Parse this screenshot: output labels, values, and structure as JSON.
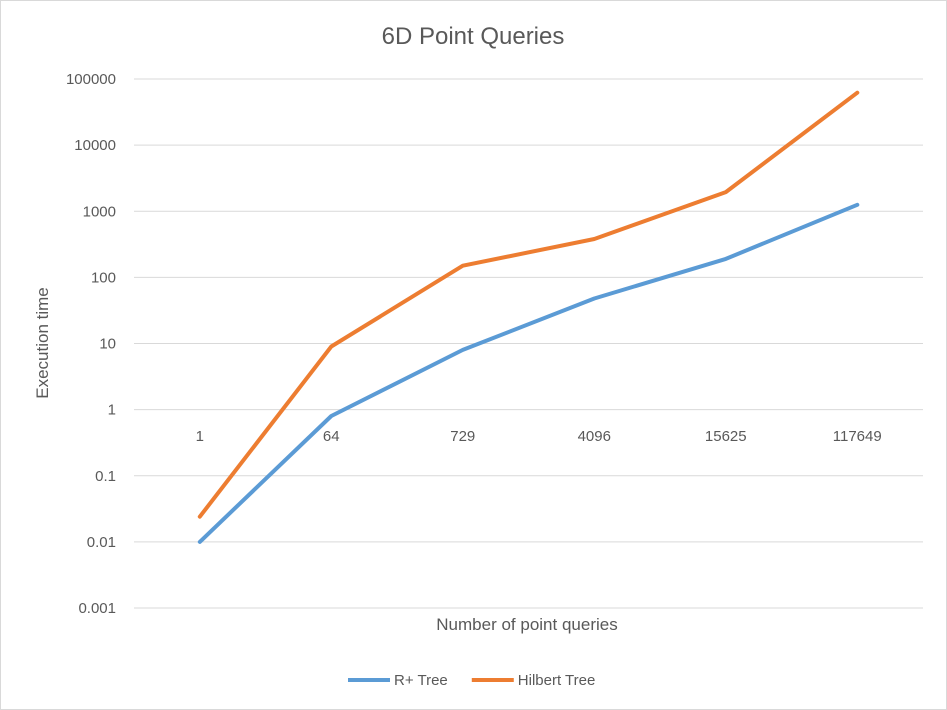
{
  "chart_data": {
    "type": "line",
    "title": "6D Point Queries",
    "xlabel": "Number of point queries",
    "ylabel": "Execution time",
    "categories": [
      "1",
      "64",
      "729",
      "4096",
      "15625",
      "117649"
    ],
    "yscale": "log",
    "ylim": [
      0.001,
      100000
    ],
    "ytick_labels": [
      "0.001",
      "0.01",
      "0.1",
      "1",
      "10",
      "100",
      "1000",
      "10000",
      "100000"
    ],
    "grid": true,
    "legend_position": "bottom",
    "series": [
      {
        "name": "R+ Tree",
        "color": "#5b9bd5",
        "values": [
          0.01,
          0.8,
          8,
          48,
          190,
          1250
        ]
      },
      {
        "name": "Hilbert Tree",
        "color": "#ed7d31",
        "values": [
          0.024,
          9,
          150,
          380,
          1950,
          62000
        ]
      }
    ]
  }
}
